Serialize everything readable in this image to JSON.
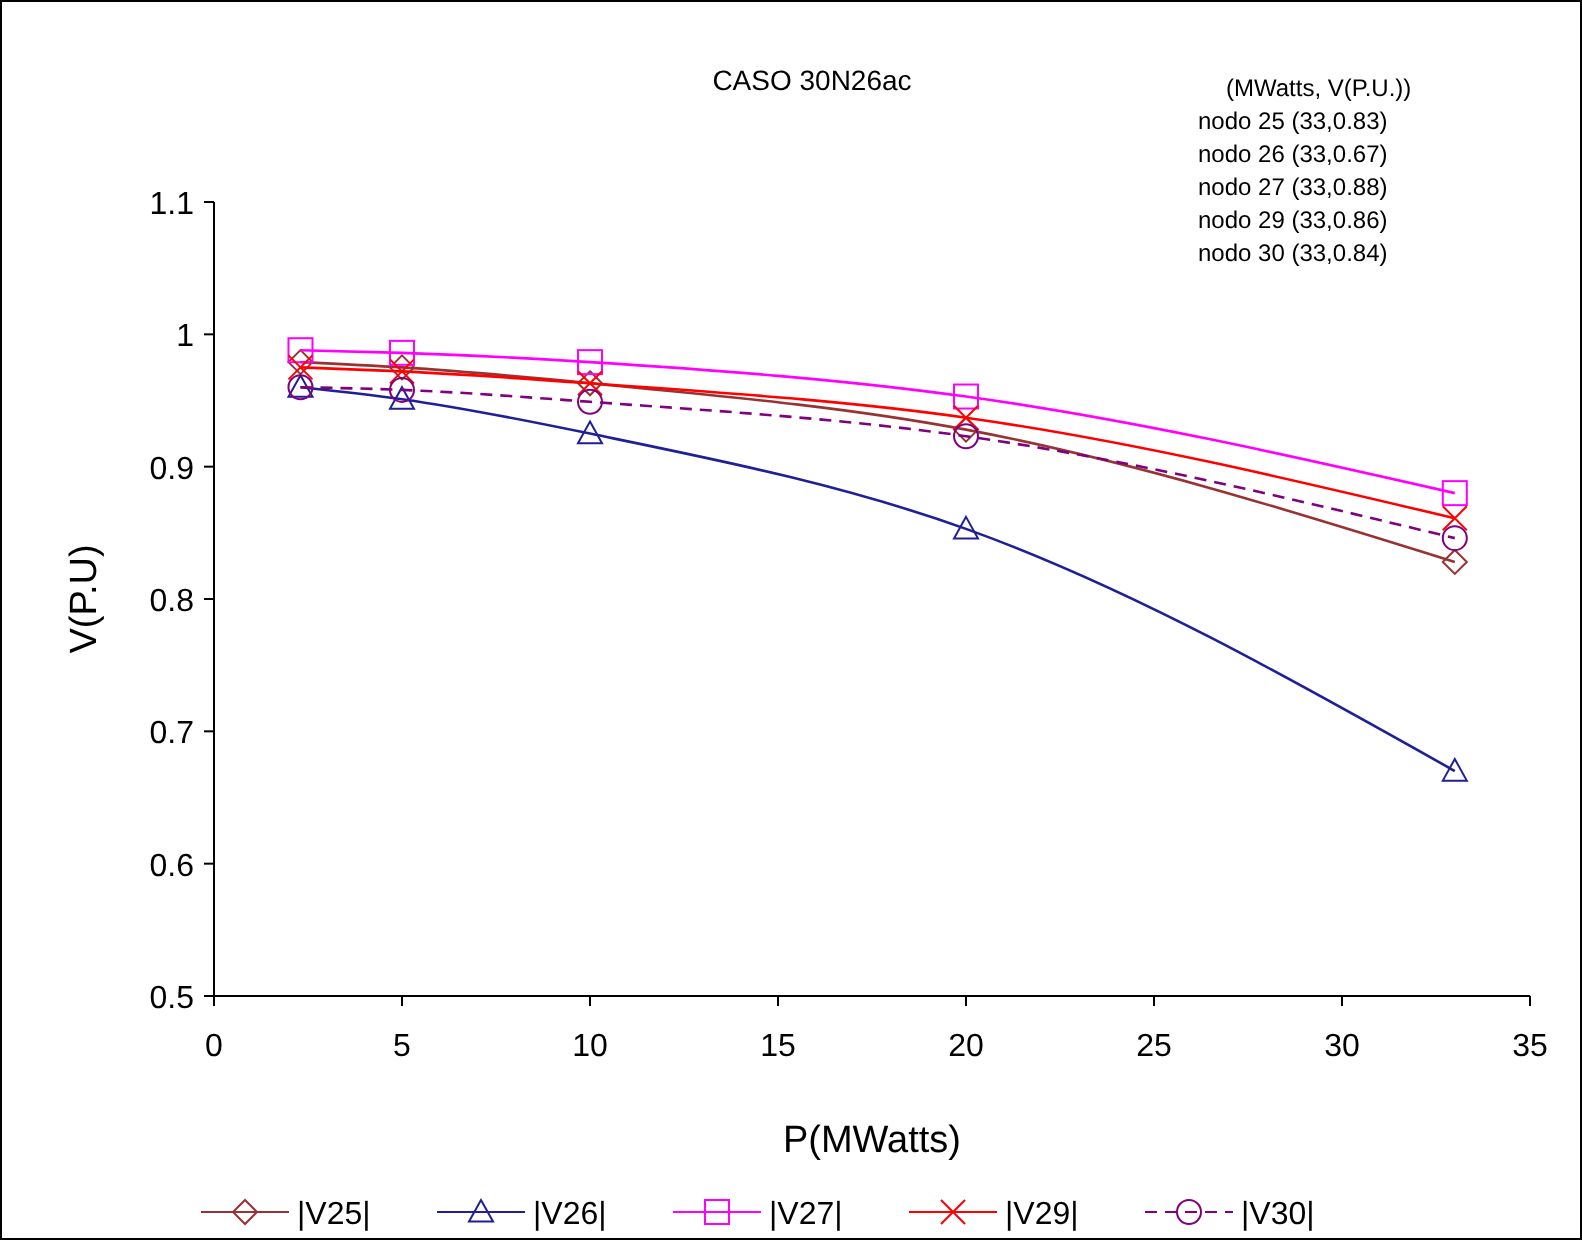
{
  "chart_data": {
    "type": "line",
    "title": "CASO 30N26ac",
    "xlabel": "P(MWatts)",
    "ylabel": "V(P.U)",
    "annotations": [
      "(MWatts, V(P.U.))",
      "nodo 25 (33,0.83)",
      "nodo 26 (33,0.67)",
      "nodo 27 (33,0.88)",
      "nodo 29 (33,0.86)",
      "nodo 30 (33,0.84)"
    ],
    "x": [
      2.3,
      5,
      10,
      20,
      33
    ],
    "series": [
      {
        "name": "|V25|",
        "color": "#993333",
        "marker": "diamond",
        "line_style": "solid",
        "values": [
          0.979,
          0.975,
          0.963,
          0.928,
          0.828
        ]
      },
      {
        "name": "|V26|",
        "color": "#1f1f99",
        "marker": "triangle",
        "line_style": "solid",
        "values": [
          0.96,
          0.951,
          0.925,
          0.853,
          0.67
        ]
      },
      {
        "name": "|V27|",
        "color": "#ff00ff",
        "marker": "square",
        "line_style": "solid",
        "values": [
          0.988,
          0.986,
          0.979,
          0.953,
          0.88
        ]
      },
      {
        "name": "|V29|",
        "color": "#ff0000",
        "marker": "cross",
        "line_style": "solid",
        "values": [
          0.975,
          0.972,
          0.963,
          0.937,
          0.861
        ]
      },
      {
        "name": "|V30|",
        "color": "#800080",
        "marker": "circle",
        "line_style": "dashed",
        "values": [
          0.96,
          0.958,
          0.949,
          0.923,
          0.846
        ]
      }
    ],
    "xlim": [
      0,
      35
    ],
    "xticks": [
      0,
      5,
      10,
      15,
      20,
      25,
      30,
      35
    ],
    "ylim": [
      0.5,
      1.1
    ],
    "yticks": [
      0.5,
      0.6,
      0.7,
      0.8,
      0.9,
      1,
      1.1
    ],
    "grid": false,
    "legend": "bottom"
  }
}
